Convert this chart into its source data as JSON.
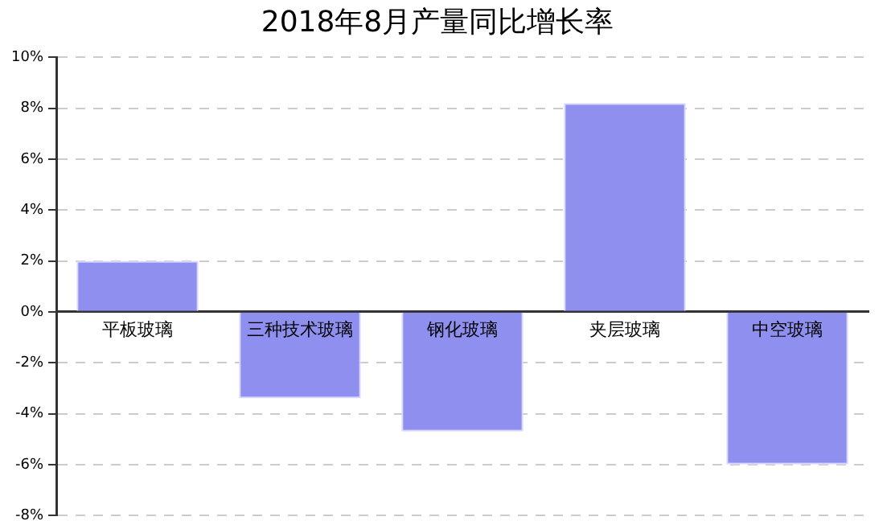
{
  "chart_data": {
    "type": "bar",
    "title": "2018年8月产量同比增长率",
    "categories": [
      "平板玻璃",
      "三种技术玻璃",
      "钢化玻璃",
      "夹层玻璃",
      "中空玻璃"
    ],
    "values": [
      2.0,
      -3.4,
      -4.7,
      8.2,
      -6.0
    ],
    "color": "#8f8ff0",
    "ylim": [
      -8,
      10
    ],
    "yticks": [
      {
        "value": -8,
        "label": "-8%"
      },
      {
        "value": -6,
        "label": "-6%"
      },
      {
        "value": -4,
        "label": "-4%"
      },
      {
        "value": -2,
        "label": "-2%"
      },
      {
        "value": 0,
        "label": "0%"
      },
      {
        "value": 2,
        "label": "2%"
      },
      {
        "value": 4,
        "label": "4%"
      },
      {
        "value": 6,
        "label": "6%"
      },
      {
        "value": 8,
        "label": "8%"
      },
      {
        "value": 10,
        "label": "10%"
      }
    ],
    "grid": "y"
  }
}
